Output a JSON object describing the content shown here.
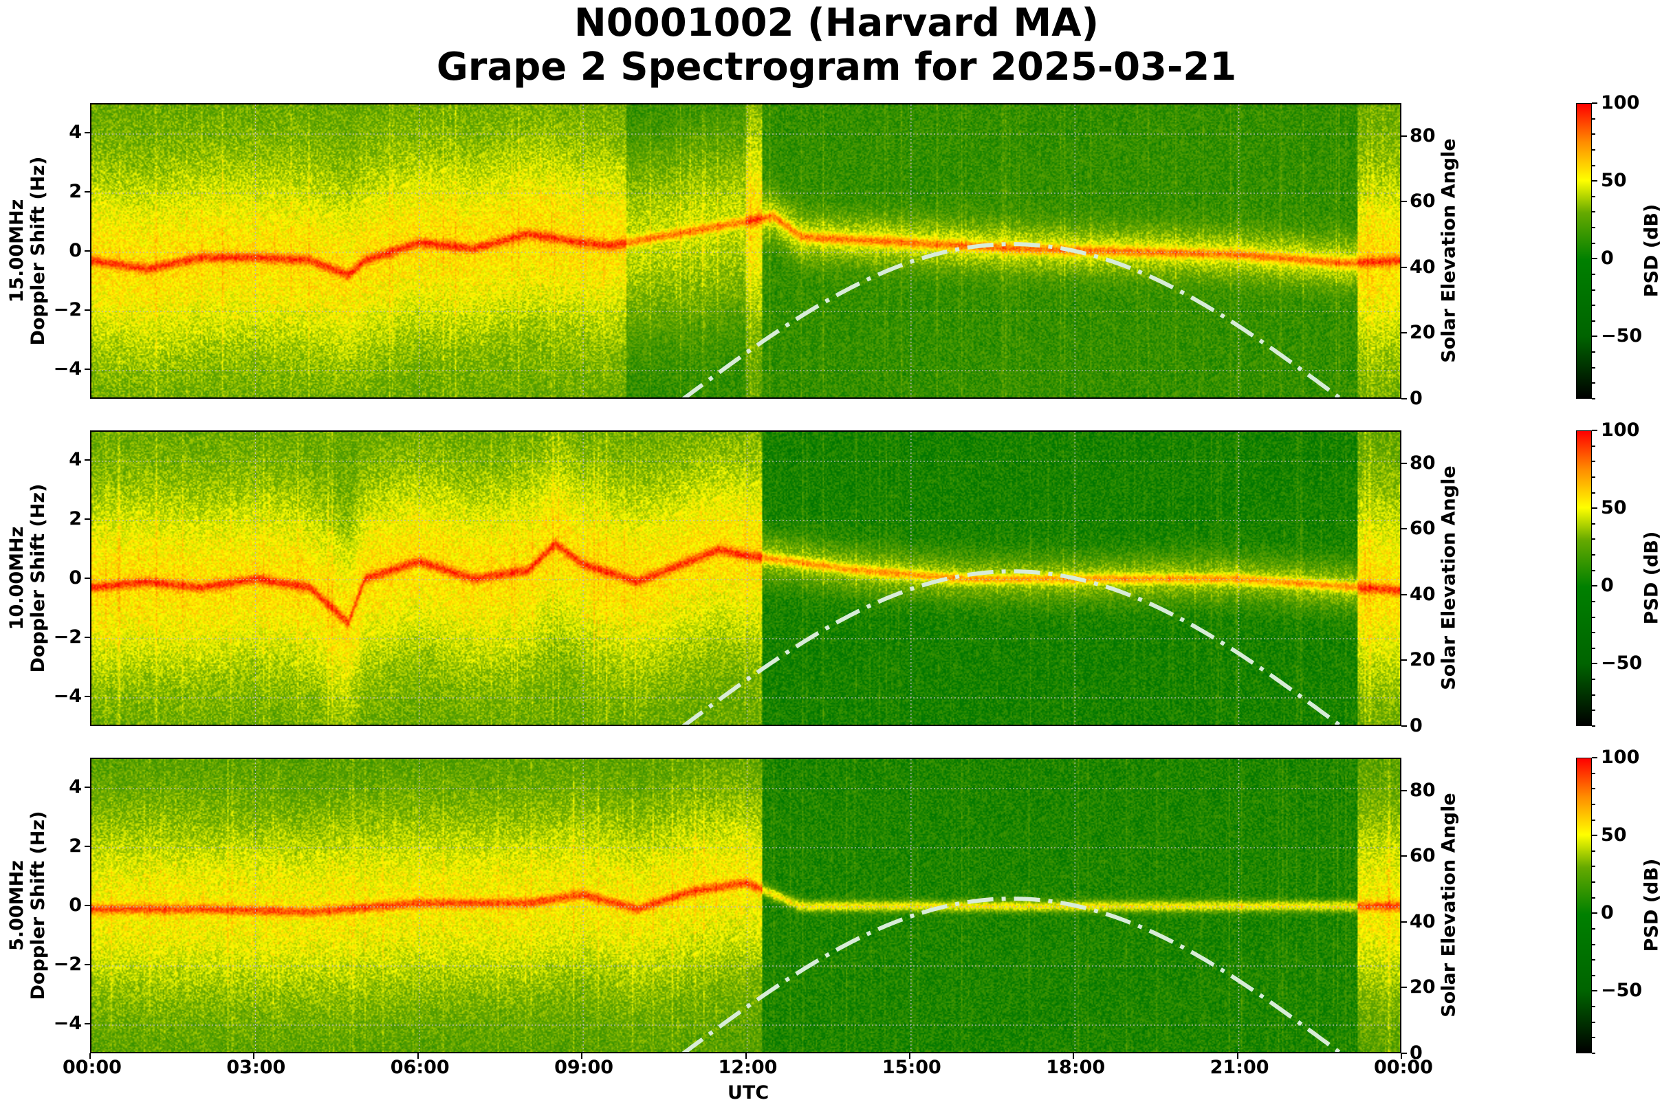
{
  "title": {
    "line1": "N0001002 (Harvard MA)",
    "line2": "Grape 2 Spectrogram for 2025-03-21"
  },
  "x_axis": {
    "label": "UTC",
    "ticks": [
      "00:00",
      "03:00",
      "06:00",
      "09:00",
      "12:00",
      "15:00",
      "18:00",
      "21:00",
      "00:00"
    ]
  },
  "panels": [
    {
      "frequency_label": "15.00MHz",
      "ylabel": "Doppler Shift (Hz)",
      "right_label": "Solar Elevation Angle",
      "colorbar_label": "PSD (dB)"
    },
    {
      "frequency_label": "10.00MHz",
      "ylabel": "Doppler Shift (Hz)",
      "right_label": "Solar Elevation Angle",
      "colorbar_label": "PSD (dB)"
    },
    {
      "frequency_label": "5.00MHz",
      "ylabel": "Doppler Shift (Hz)",
      "right_label": "Solar Elevation Angle",
      "colorbar_label": "PSD (dB)"
    }
  ],
  "left_ticks": [
    "4",
    "2",
    "0",
    "−2",
    "−4"
  ],
  "right_ticks": [
    "80",
    "60",
    "40",
    "20",
    "0"
  ],
  "colorbar_ticks": [
    "100",
    "50",
    "0",
    "−50"
  ],
  "colors": {
    "cmap": [
      "#000000",
      "#006400",
      "#008000",
      "#ffff00",
      "#ff8c00",
      "#ff0000"
    ],
    "solar_curve": "#d8ecd8",
    "grid": "#bbbbbb"
  },
  "chart_data": {
    "type": "heatmap",
    "title": "N0001002 (Harvard MA) Grape 2 Spectrogram for 2025-03-21",
    "xlabel": "UTC",
    "x_ticks": [
      "00:00",
      "03:00",
      "06:00",
      "09:00",
      "12:00",
      "15:00",
      "18:00",
      "21:00",
      "00:00"
    ],
    "xlim_hours": [
      0,
      24
    ],
    "ylabel": "Doppler Shift (Hz)",
    "ylim": [
      -5,
      5
    ],
    "y_ticks": [
      -4,
      -2,
      0,
      2,
      4
    ],
    "right_ylabel": "Solar Elevation Angle",
    "right_ylim": [
      0,
      90
    ],
    "right_y_ticks": [
      0,
      20,
      40,
      60,
      80
    ],
    "colorbar": {
      "label": "PSD (dB)",
      "range": [
        -90,
        100
      ],
      "ticks": [
        -50,
        0,
        50,
        100
      ],
      "colormap": "black-green-yellow-orange-red"
    },
    "grid": true,
    "subplots": [
      {
        "frequency": "15.00MHz",
        "carrier_doppler_trace_hz": {
          "x_hours": [
            0,
            1,
            2,
            3,
            4,
            4.7,
            5,
            6,
            7,
            8,
            9,
            9.5,
            12.5,
            13,
            15,
            17,
            19,
            21,
            23,
            24
          ],
          "y": [
            -0.3,
            -0.6,
            -0.2,
            -0.2,
            -0.3,
            -0.8,
            -0.3,
            0.3,
            0.1,
            0.6,
            0.3,
            0.2,
            1.2,
            0.5,
            0.3,
            0.1,
            0,
            -0.1,
            -0.4,
            -0.3
          ]
        }
      },
      {
        "frequency": "10.00MHz",
        "carrier_doppler_trace_hz": {
          "x_hours": [
            0,
            1,
            2,
            3,
            4,
            4.7,
            5,
            6,
            7,
            8,
            8.5,
            9,
            10,
            11.5,
            12,
            14,
            16,
            18,
            21,
            24
          ],
          "y": [
            -0.3,
            -0.1,
            -0.3,
            0,
            -0.3,
            -1.5,
            0,
            0.6,
            0,
            0.3,
            1.2,
            0.5,
            -0.1,
            1.0,
            0.8,
            0.3,
            0,
            0,
            0,
            -0.4
          ]
        }
      },
      {
        "frequency": "5.00MHz",
        "carrier_doppler_trace_hz": {
          "x_hours": [
            0,
            2,
            4,
            6,
            8,
            9,
            10,
            11,
            12,
            13,
            18,
            24
          ],
          "y": [
            -0.1,
            -0.1,
            -0.2,
            0.1,
            0.1,
            0.4,
            -0.1,
            0.5,
            0.8,
            0,
            0,
            0
          ]
        }
      }
    ],
    "solar_elevation_series": {
      "name": "Solar Elevation Angle",
      "style": "dash-dot",
      "x_hours": [
        10.8,
        12,
        13,
        14,
        15,
        16,
        16.8,
        18,
        19,
        20,
        21,
        22,
        22.9
      ],
      "y_deg": [
        0,
        12,
        22,
        31,
        39,
        45,
        47.5,
        45,
        38,
        29,
        19,
        8,
        0
      ]
    }
  }
}
